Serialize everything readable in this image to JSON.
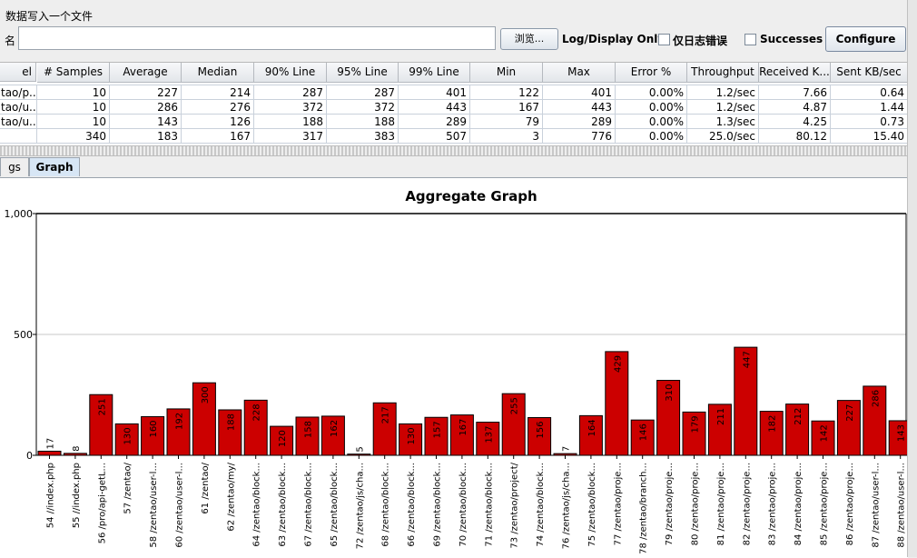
{
  "file_section": {
    "title": "数据写入一个文件",
    "filename_label": "名",
    "filename_value": "",
    "browse_label": "浏览...",
    "log_display_label": "Log/Display Only:",
    "errors_only_label": "仅日志错误",
    "successes_label": "Successes",
    "configure_label": "Configure"
  },
  "table": {
    "headers": [
      "el",
      "# Samples",
      "Average",
      "Median",
      "90% Line",
      "95% Line",
      "99% Line",
      "Min",
      "Max",
      "Error %",
      "Throughput",
      "Received K...",
      "Sent KB/sec"
    ],
    "rows": [
      [
        "tao/p...",
        "10",
        "227",
        "214",
        "287",
        "287",
        "401",
        "122",
        "401",
        "0.00%",
        "1.2/sec",
        "7.66",
        "0.64"
      ],
      [
        "tao/u...",
        "10",
        "286",
        "276",
        "372",
        "372",
        "443",
        "167",
        "443",
        "0.00%",
        "1.2/sec",
        "4.87",
        "1.44"
      ],
      [
        "tao/u...",
        "10",
        "143",
        "126",
        "188",
        "188",
        "289",
        "79",
        "289",
        "0.00%",
        "1.3/sec",
        "4.25",
        "0.73"
      ],
      [
        "",
        "340",
        "183",
        "167",
        "317",
        "383",
        "507",
        "3",
        "776",
        "0.00%",
        "25.0/sec",
        "80.12",
        "15.40"
      ]
    ]
  },
  "tabs": [
    "gs",
    "Graph"
  ],
  "chart_data": {
    "type": "bar",
    "title": "Aggregate Graph",
    "ylim": [
      0,
      1000
    ],
    "y_ticks": [
      "0",
      "500",
      "1,000"
    ],
    "grid": true,
    "bar_color": "#cc0000",
    "categories": [
      "54 //index.php",
      "55 //index.php",
      "56 /pro/api-getL...",
      "57 /zentao/",
      "58 /zentao/user-l...",
      "60 /zentao/user-l...",
      "61 /zentao/",
      "62 /zentao/my/",
      "64 /zentao/block...",
      "63 /zentao/block...",
      "67 /zentao/block...",
      "65 /zentao/block...",
      "72 /zentao/js/cha...",
      "68 /zentao/block...",
      "66 /zentao/block...",
      "69 /zentao/block...",
      "70 /zentao/block...",
      "71 /zentao/block...",
      "73 /zentao/project/",
      "74 /zentao/block...",
      "76 /zentao/js/cha...",
      "75 /zentao/block...",
      "77 /zentao/proje...",
      "78 /zentao/branch...",
      "79 /zentao/proje...",
      "80 /zentao/proje...",
      "81 /zentao/proje...",
      "82 /zentao/proje...",
      "83 /zentao/proje...",
      "84 /zentao/proje...",
      "85 /zentao/proje...",
      "86 /zentao/proje...",
      "87 /zentao/user-l...",
      "88 /zentao/user-l..."
    ],
    "values": [
      17,
      8,
      251,
      130,
      160,
      192,
      300,
      188,
      228,
      120,
      158,
      162,
      5,
      217,
      130,
      157,
      167,
      137,
      255,
      156,
      7,
      164,
      429,
      146,
      310,
      179,
      211,
      447,
      182,
      212,
      142,
      227,
      286,
      143
    ]
  }
}
